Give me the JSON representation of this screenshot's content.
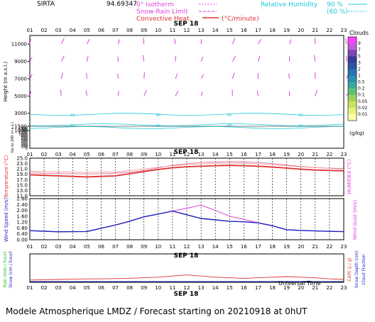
{
  "header": {
    "site": "SIRTA",
    "value": "94.69347",
    "legend": {
      "isotherm": "0° isotherm",
      "snow_rain": "Snow-Rain Limit",
      "convective": "Convective Heat.",
      "convective_unit": "(°C/minute)",
      "rh_label": "Relative Humidity",
      "rh_90": "90 %",
      "rh_60": "(60 %)"
    }
  },
  "footer": {
    "text": "Modele Atmospherique LMDZ / Forecast starting on 20210918 at 0hUT"
  },
  "chart_data": [
    {
      "type": "heatmap",
      "panel": "clouds-wind",
      "date_label": "SEP 18",
      "hours": [
        "01",
        "02",
        "03",
        "04",
        "05",
        "06",
        "07",
        "08",
        "09",
        "10",
        "11",
        "12",
        "13",
        "14",
        "15",
        "16",
        "17",
        "18",
        "19",
        "20",
        "21",
        "22",
        "23"
      ],
      "ylabel": "Height (m a.s.l.)",
      "ylabel_lower": "Up to 200 m a.s.l.",
      "yticks_upper": [
        1000,
        1500,
        3000,
        5000,
        7000,
        9000,
        11000
      ],
      "yticks_lower": [
        0,
        100,
        200,
        300,
        400,
        500,
        600,
        700,
        800,
        900,
        1000,
        1100,
        1200,
        1300,
        1400
      ],
      "colorbar": {
        "title": "Clouds",
        "unit": "(g/kg)",
        "labels": [
          "0.01",
          "0.02",
          "0.05",
          "0.1",
          "0.2",
          "0.5",
          "1",
          "2",
          "3",
          "5",
          "7",
          "9"
        ],
        "colors": [
          "#ffffaa",
          "#ecf080",
          "#c8e060",
          "#9ed060",
          "#5fbe7a",
          "#3aa9a0",
          "#2a90b0",
          "#2a73b0",
          "#2e54a8",
          "#3a3a98",
          "#7a48b8",
          "#c060d8",
          "#ff40ff"
        ]
      },
      "cloud_layer_m": [
        2000,
        2800
      ],
      "contour_labels": [
        "60",
        "90"
      ]
    },
    {
      "type": "line",
      "panel": "temperature-humidex",
      "ylabel": "Temperature (°C)",
      "ylabel_right": "HUMIDEX (°C)",
      "yticks": [
        11.0,
        13.0,
        15.0,
        17.0,
        19.0,
        21.0,
        23.0,
        25.0
      ],
      "x": [
        1,
        2,
        3,
        4,
        5,
        6,
        7,
        8,
        9,
        10,
        11,
        12,
        13,
        14,
        15,
        16,
        17,
        18,
        19,
        20,
        21,
        22,
        23
      ],
      "series": [
        {
          "values": [
            18.8,
            18.6,
            18.4,
            18.2,
            18.0,
            18.2,
            18.4,
            19.2,
            20.0,
            20.8,
            21.4,
            21.8,
            22.0,
            22.2,
            22.3,
            22.2,
            22.0,
            21.7,
            21.3,
            20.9,
            20.6,
            20.4,
            20.3
          ]
        },
        {
          "values": [
            19.5,
            19.4,
            19.3,
            19.2,
            19.1,
            19.2,
            19.4,
            19.8,
            20.4,
            21.4,
            22.3,
            23.0,
            23.4,
            23.6,
            23.7,
            23.6,
            23.4,
            23.0,
            22.4,
            21.9,
            21.5,
            21.2,
            21.0
          ]
        },
        {
          "values": [
            20.2,
            20.0,
            19.9,
            19.8,
            19.7,
            19.8,
            19.9,
            20.4,
            21.0,
            21.6,
            22.2,
            22.6,
            22.9,
            23.1,
            23.2,
            23.1,
            22.9,
            22.6,
            22.2,
            21.8,
            21.5,
            21.3,
            21.2
          ]
        }
      ]
    },
    {
      "type": "line",
      "panel": "wind",
      "ylabel": "Wind Speed (m/s)",
      "ylabel_right": "Wind Gust (m/s)",
      "yticks": [
        0.0,
        0.4,
        0.8,
        1.2,
        1.6,
        2.0,
        2.4,
        2.8
      ],
      "x": [
        1,
        2,
        3,
        4,
        5,
        6,
        7,
        8,
        9,
        10,
        11,
        12,
        13,
        14,
        15,
        16,
        17,
        18,
        19,
        20,
        21,
        22,
        23
      ],
      "series": [
        {
          "values": [
            0.62,
            0.58,
            0.54,
            0.55,
            0.56,
            0.78,
            1.0,
            1.26,
            1.56,
            1.75,
            1.95,
            2.14,
            2.36,
            2.0,
            1.6,
            1.38,
            1.15,
            0.95,
            0.68,
            0.63,
            0.6,
            0.57,
            0.55
          ]
        },
        {
          "values": [
            0.62,
            0.58,
            0.54,
            0.55,
            0.56,
            0.78,
            1.0,
            1.26,
            1.56,
            1.75,
            1.95,
            1.7,
            1.45,
            1.35,
            1.25,
            1.22,
            1.15,
            0.95,
            0.68,
            0.63,
            0.6,
            0.57,
            0.55
          ]
        }
      ]
    },
    {
      "type": "line",
      "panel": "precipitation",
      "ylabel_left": "Rain (mm / hour)",
      "ylabel_left2": "Snow (cm / hour)",
      "ylabel_right": "CAPE (J / g)",
      "ylabel_right2": "Snow Depth (cm)",
      "ylabel_right3": "Cloud Fraction",
      "xlabel": "Universal Time",
      "date_label": "SEP 18",
      "x": [
        1,
        2,
        3,
        4,
        5,
        6,
        7,
        8,
        9,
        10,
        11,
        12,
        13,
        14,
        15,
        16,
        17,
        18,
        19,
        20,
        21,
        22,
        23
      ],
      "series": [
        {
          "values": [
            0.04,
            0.045,
            0.05,
            0.055,
            0.06,
            0.06,
            0.065,
            0.07,
            0.08,
            0.09,
            0.11,
            0.13,
            0.11,
            0.09,
            0.08,
            0.07,
            0.08,
            0.09,
            0.1,
            0.09,
            0.08,
            0.06,
            0.05
          ]
        }
      ]
    }
  ]
}
